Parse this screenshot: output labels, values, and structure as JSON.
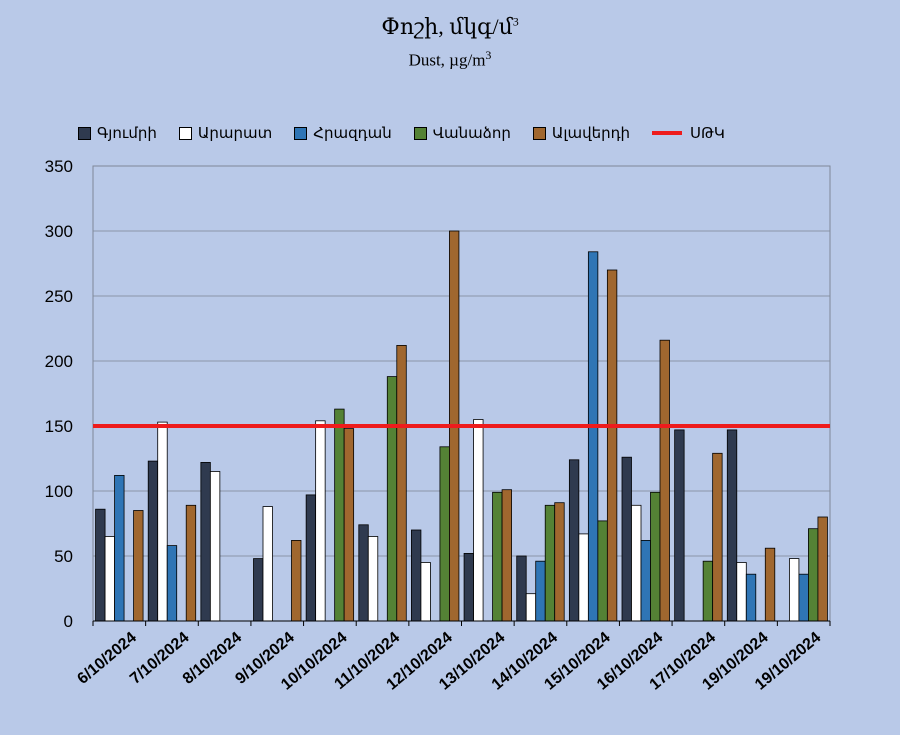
{
  "chart_data": {
    "type": "bar",
    "title": "Փոշի, մկգ/մ",
    "title_sup": "3",
    "subtitle": "Dust, µg/m",
    "subtitle_sup": "3",
    "ylim": [
      0,
      350
    ],
    "yticks": [
      0,
      50,
      100,
      150,
      200,
      250,
      300,
      350
    ],
    "grid": true,
    "legend_position": "top",
    "categories": [
      "6/10/2024",
      "7/10/2024",
      "8/10/2024",
      "9/10/2024",
      "10/10/2024",
      "11/10/2024",
      "12/10/2024",
      "13/10/2024",
      "14/10/2024",
      "15/10/2024",
      "16/10/2024",
      "17/10/2024",
      "19/10/2024",
      "19/10/2024"
    ],
    "series": [
      {
        "name": "Գյումրի",
        "color": "#2f3a4f",
        "values": [
          86,
          123,
          122,
          48,
          97,
          74,
          70,
          52,
          50,
          124,
          126,
          147,
          147,
          null
        ]
      },
      {
        "name": "Արարատ",
        "color": "#ffffff",
        "values": [
          65,
          153,
          115,
          88,
          154,
          65,
          45,
          155,
          21,
          67,
          89,
          null,
          45,
          48
        ]
      },
      {
        "name": "Հրազդան",
        "color": "#2f75b5",
        "values": [
          112,
          58,
          null,
          null,
          null,
          null,
          null,
          null,
          46,
          284,
          62,
          null,
          36,
          36
        ]
      },
      {
        "name": "Վանաձոր",
        "color": "#548235",
        "values": [
          null,
          null,
          null,
          null,
          163,
          188,
          134,
          99,
          89,
          77,
          99,
          46,
          null,
          71
        ]
      },
      {
        "name": "Ալավերդի",
        "color": "#a0672f",
        "values": [
          85,
          89,
          null,
          62,
          148,
          212,
          300,
          101,
          91,
          270,
          216,
          129,
          56,
          80
        ]
      }
    ],
    "reference_line": {
      "name": "ՍԹԿ",
      "value": 150,
      "color": "#ee1c1c"
    }
  }
}
